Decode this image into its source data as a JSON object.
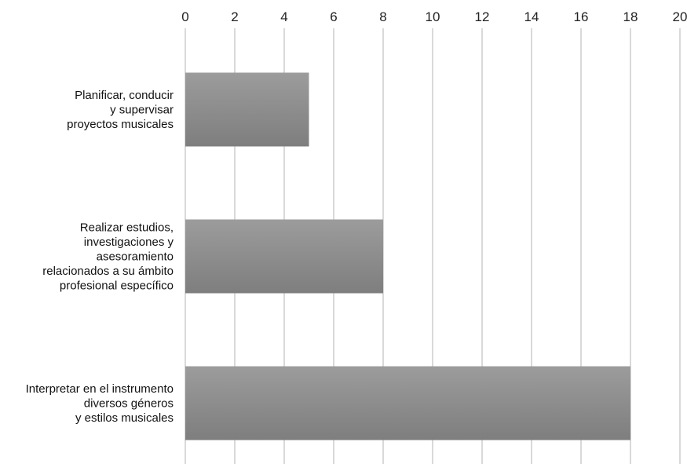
{
  "chart_data": {
    "type": "bar",
    "orientation": "horizontal",
    "categories": [
      [
        "Planificar, conducir",
        "y supervisar",
        "proyectos musicales"
      ],
      [
        "Realizar estudios,",
        "investigaciones y",
        "asesoramiento",
        "relacionados a su ámbito",
        "profesional específico"
      ],
      [
        "Interpretar en el instrumento",
        "diversos géneros",
        "y estilos musicales"
      ]
    ],
    "values": [
      5,
      8,
      18
    ],
    "xlim": [
      0,
      20
    ],
    "xticks": [
      "0",
      "2",
      "4",
      "6",
      "8",
      "10",
      "12",
      "14",
      "16",
      "18",
      "20"
    ],
    "x_axis_position": "top",
    "grid": true,
    "bar_color": "#8e8e8e",
    "title": "",
    "xlabel": "",
    "ylabel": ""
  }
}
